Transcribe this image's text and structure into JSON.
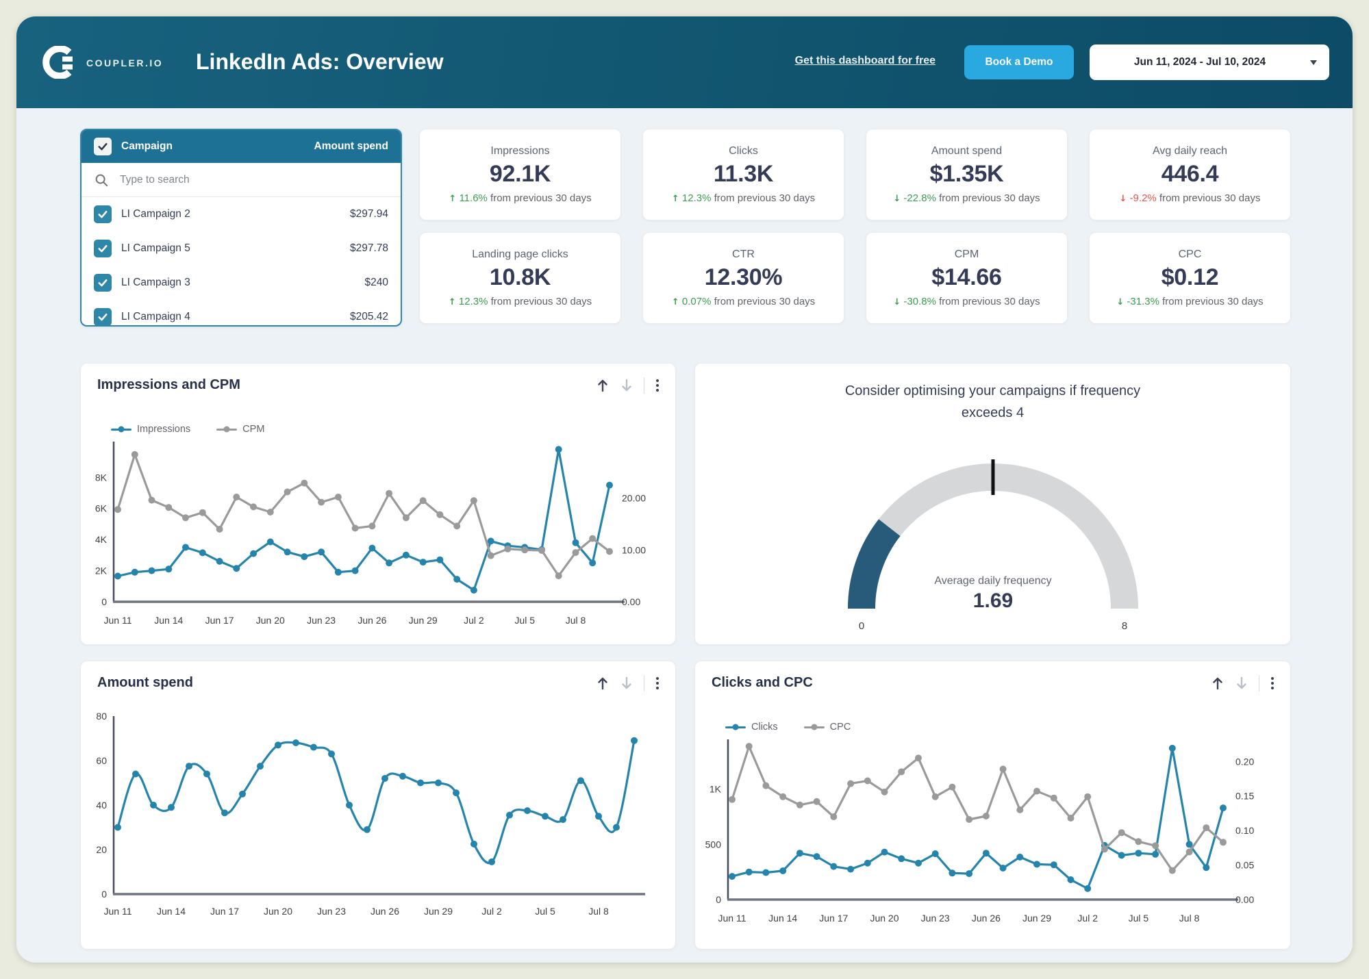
{
  "colors": {
    "header_teal": "#14607F",
    "accent_blue": "#29A9DF",
    "line_blue": "#2484AB",
    "line_gray": "#9A9A9A",
    "positive_green": "#3C9D50",
    "negative_red": "#EF5350",
    "gauge_fill": "#275B79",
    "gauge_track": "#D5D7D9",
    "panel_teal": "#1C7195"
  },
  "header": {
    "brand": "COUPLER.IO",
    "title": "LinkedIn Ads: Overview",
    "link": "Get this dashboard for free",
    "demo_button": "Book a Demo",
    "date_range": "Jun 11, 2024 - Jul 10, 2024"
  },
  "campaign_panel": {
    "columns": {
      "campaign": "Campaign",
      "amount": "Amount spend"
    },
    "search_placeholder": "Type to search",
    "rows": [
      {
        "name": "LI Campaign 2",
        "amount": "$297.94",
        "checked": true
      },
      {
        "name": "LI Campaign 5",
        "amount": "$297.78",
        "checked": true
      },
      {
        "name": "LI Campaign 3",
        "amount": "$240",
        "checked": true
      },
      {
        "name": "LI Campaign 4",
        "amount": "$205.42",
        "checked": true
      }
    ]
  },
  "kpi_cards": [
    {
      "label": "Impressions",
      "value": "92.1K",
      "delta": "11.6%",
      "direction": "up",
      "trend_color": "green",
      "suffix": "from previous 30 days"
    },
    {
      "label": "Clicks",
      "value": "11.3K",
      "delta": "12.3%",
      "direction": "up",
      "trend_color": "green",
      "suffix": "from previous 30 days"
    },
    {
      "label": "Amount spend",
      "value": "$1.35K",
      "delta": "-22.8%",
      "direction": "down",
      "trend_color": "green",
      "suffix": "from previous 30 days"
    },
    {
      "label": "Avg daily reach",
      "value": "446.4",
      "delta": "-9.2%",
      "direction": "down",
      "trend_color": "red",
      "suffix": "from previous 30 days"
    },
    {
      "label": "Landing page clicks",
      "value": "10.8K",
      "delta": "12.3%",
      "direction": "up",
      "trend_color": "green",
      "suffix": "from previous 30 days"
    },
    {
      "label": "CTR",
      "value": "12.30%",
      "delta": "0.07%",
      "direction": "up",
      "trend_color": "green",
      "suffix": "from previous 30 days"
    },
    {
      "label": "CPM",
      "value": "$14.66",
      "delta": "-30.8%",
      "direction": "down",
      "trend_color": "green",
      "suffix": "from previous 30 days"
    },
    {
      "label": "CPC",
      "value": "$0.12",
      "delta": "-31.3%",
      "direction": "down",
      "trend_color": "green",
      "suffix": "from previous 30 days"
    }
  ],
  "chart_data": [
    {
      "id": "impressions_cpm",
      "type": "line",
      "title": "Impressions and CPM",
      "x_labels": [
        "Jun 11",
        "Jun 12",
        "Jun 13",
        "Jun 14",
        "Jun 15",
        "Jun 16",
        "Jun 17",
        "Jun 18",
        "Jun 19",
        "Jun 20",
        "Jun 21",
        "Jun 22",
        "Jun 23",
        "Jun 24",
        "Jun 25",
        "Jun 26",
        "Jun 27",
        "Jun 28",
        "Jun 29",
        "Jun 30",
        "Jul 1",
        "Jul 2",
        "Jul 3",
        "Jul 4",
        "Jul 5",
        "Jul 6",
        "Jul 7",
        "Jul 8",
        "Jul 9",
        "Jul 10"
      ],
      "x_tick_labels": [
        "Jun 11",
        "Jun 14",
        "Jun 17",
        "Jun 20",
        "Jun 23",
        "Jun 26",
        "Jun 29",
        "Jul 2",
        "Jul 5",
        "Jul 8"
      ],
      "x_tick_indices": [
        0,
        3,
        6,
        9,
        12,
        15,
        18,
        21,
        24,
        27
      ],
      "left_axis": {
        "max": 10300,
        "ticks": [
          {
            "v": 0,
            "label": "0"
          },
          {
            "v": 2000,
            "label": "2K"
          },
          {
            "v": 4000,
            "label": "4K"
          },
          {
            "v": 6000,
            "label": "6K"
          },
          {
            "v": 8000,
            "label": "8K"
          }
        ]
      },
      "right_axis": {
        "max": 30.9,
        "ticks": [
          {
            "v": 0,
            "label": "0.00"
          },
          {
            "v": 10,
            "label": "10.00"
          },
          {
            "v": 20,
            "label": "20.00"
          }
        ]
      },
      "series": [
        {
          "name": "Impressions",
          "axis": "left",
          "color": "#2484AB",
          "smooth": false,
          "values": [
            1650,
            1900,
            2000,
            2100,
            3500,
            3150,
            2600,
            2150,
            3100,
            3850,
            3200,
            2900,
            3200,
            1900,
            2000,
            3450,
            2500,
            3000,
            2550,
            2700,
            1450,
            750,
            3900,
            3600,
            3500,
            3350,
            9800,
            3800,
            2500,
            7500
          ]
        },
        {
          "name": "CPM",
          "axis": "right",
          "color": "#9A9A9A",
          "smooth": false,
          "values": [
            17.8,
            28.4,
            19.6,
            18.2,
            16.2,
            17.2,
            14.0,
            20.2,
            18.3,
            17.3,
            21.2,
            22.9,
            19.2,
            20.2,
            14.2,
            14.6,
            20.9,
            16.2,
            19.5,
            16.8,
            14.6,
            19.5,
            8.9,
            10.2,
            10.0,
            9.9,
            5.0,
            9.5,
            12.2,
            9.7
          ]
        }
      ]
    },
    {
      "id": "frequency_gauge",
      "type": "gauge",
      "title": "Consider optimising your campaigns if frequency exceeds 4",
      "min": 0,
      "max": 8,
      "value": 1.69,
      "threshold": 4,
      "value_label": "Average daily frequency",
      "value_display": "1.69",
      "min_label": "0",
      "max_label": "8",
      "fill_color": "#275B79",
      "track_color": "#D5D7D9"
    },
    {
      "id": "amount_spend",
      "type": "line",
      "title": "Amount spend",
      "x_labels": [
        "Jun 11",
        "Jun 12",
        "Jun 13",
        "Jun 14",
        "Jun 15",
        "Jun 16",
        "Jun 17",
        "Jun 18",
        "Jun 19",
        "Jun 20",
        "Jun 21",
        "Jun 22",
        "Jun 23",
        "Jun 24",
        "Jun 25",
        "Jun 26",
        "Jun 27",
        "Jun 28",
        "Jun 29",
        "Jun 30",
        "Jul 1",
        "Jul 2",
        "Jul 3",
        "Jul 4",
        "Jul 5",
        "Jul 6",
        "Jul 7",
        "Jul 8",
        "Jul 9",
        "Jul 10"
      ],
      "x_tick_labels": [
        "Jun 11",
        "Jun 14",
        "Jun 17",
        "Jun 20",
        "Jun 23",
        "Jun 26",
        "Jun 29",
        "Jul 2",
        "Jul 5",
        "Jul 8"
      ],
      "x_tick_indices": [
        0,
        3,
        6,
        9,
        12,
        15,
        18,
        21,
        24,
        27
      ],
      "left_axis": {
        "max": 80,
        "ticks": [
          {
            "v": 0,
            "label": "0"
          },
          {
            "v": 20,
            "label": "20"
          },
          {
            "v": 40,
            "label": "40"
          },
          {
            "v": 60,
            "label": "60"
          },
          {
            "v": 80,
            "label": "80"
          }
        ]
      },
      "series": [
        {
          "name": "Amount spend",
          "axis": "left",
          "color": "#2484AB",
          "smooth": true,
          "values": [
            30,
            54,
            40,
            39,
            57.5,
            54,
            36.5,
            45,
            57.5,
            67,
            68,
            66,
            63,
            40,
            29,
            52,
            53,
            50,
            50,
            45.5,
            22.5,
            14.5,
            35.5,
            37.5,
            35,
            33.5,
            51,
            35,
            30,
            69
          ]
        }
      ]
    },
    {
      "id": "clicks_cpc",
      "type": "line",
      "title": "Clicks and CPC",
      "x_labels": [
        "Jun 11",
        "Jun 12",
        "Jun 13",
        "Jun 14",
        "Jun 15",
        "Jun 16",
        "Jun 17",
        "Jun 18",
        "Jun 19",
        "Jun 20",
        "Jun 21",
        "Jun 22",
        "Jun 23",
        "Jun 24",
        "Jun 25",
        "Jun 26",
        "Jun 27",
        "Jun 28",
        "Jun 29",
        "Jun 30",
        "Jul 1",
        "Jul 2",
        "Jul 3",
        "Jul 4",
        "Jul 5",
        "Jul 6",
        "Jul 7",
        "Jul 8",
        "Jul 9",
        "Jul 10"
      ],
      "x_tick_labels": [
        "Jun 11",
        "Jun 14",
        "Jun 17",
        "Jun 20",
        "Jun 23",
        "Jun 26",
        "Jun 29",
        "Jul 2",
        "Jul 5",
        "Jul 8"
      ],
      "x_tick_indices": [
        0,
        3,
        6,
        9,
        12,
        15,
        18,
        21,
        24,
        27
      ],
      "left_axis": {
        "max": 1450,
        "ticks": [
          {
            "v": 0,
            "label": "0"
          },
          {
            "v": 500,
            "label": "500"
          },
          {
            "v": 1000,
            "label": "1K"
          }
        ]
      },
      "right_axis": {
        "max": 0.232,
        "ticks": [
          {
            "v": 0,
            "label": "0.00"
          },
          {
            "v": 0.05,
            "label": "0.05"
          },
          {
            "v": 0.1,
            "label": "0.10"
          },
          {
            "v": 0.15,
            "label": "0.15"
          },
          {
            "v": 0.2,
            "label": "0.20"
          }
        ]
      },
      "series": [
        {
          "name": "Clicks",
          "axis": "left",
          "color": "#2484AB",
          "smooth": false,
          "values": [
            210,
            250,
            245,
            260,
            420,
            390,
            300,
            275,
            330,
            430,
            370,
            330,
            415,
            240,
            235,
            420,
            285,
            385,
            320,
            315,
            180,
            100,
            490,
            400,
            420,
            410,
            1370,
            500,
            290,
            830
          ]
        },
        {
          "name": "CPC",
          "axis": "right",
          "color": "#9A9A9A",
          "smooth": false,
          "values": [
            0.145,
            0.222,
            0.165,
            0.149,
            0.137,
            0.142,
            0.12,
            0.168,
            0.172,
            0.156,
            0.185,
            0.205,
            0.149,
            0.163,
            0.116,
            0.121,
            0.189,
            0.13,
            0.157,
            0.147,
            0.118,
            0.149,
            0.073,
            0.097,
            0.084,
            0.078,
            0.042,
            0.069,
            0.104,
            0.083
          ]
        }
      ]
    }
  ]
}
